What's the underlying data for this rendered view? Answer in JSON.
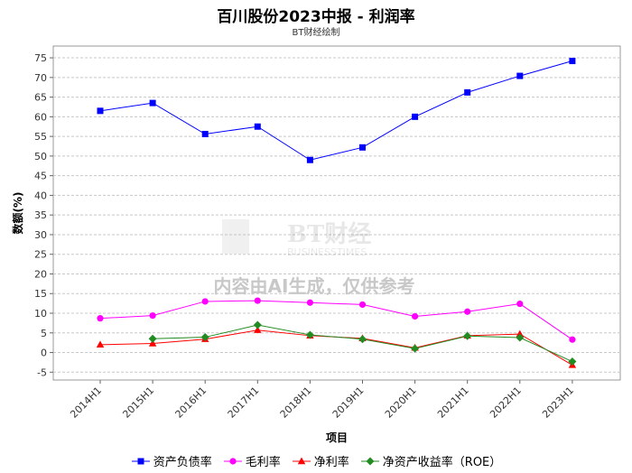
{
  "title": "百川股份2023中报 - 利润率",
  "subtitle": "BT财经绘制",
  "watermark": {
    "logo_text": "BT财经",
    "logo_sub": "BUSINESSTIMES",
    "notice": "内容由AI生成，仅供参考"
  },
  "chart_data": {
    "type": "line",
    "title": "百川股份2023中报 - 利润率",
    "subtitle": "BT财经绘制",
    "xlabel": "项目",
    "ylabel": "数额(%)",
    "ylim": [
      -7,
      78
    ],
    "yticks": [
      -5,
      0,
      5,
      10,
      15,
      20,
      25,
      30,
      35,
      40,
      45,
      50,
      55,
      60,
      65,
      70,
      75
    ],
    "grid": true,
    "legend_position": "bottom",
    "categories": [
      "2014H1",
      "2015H1",
      "2016H1",
      "2017H1",
      "2018H1",
      "2019H1",
      "2020H1",
      "2021H1",
      "2022H1",
      "2023H1"
    ],
    "series": [
      {
        "name": "资产负债率",
        "color": "#0000ff",
        "marker": "square",
        "values": [
          61.5,
          63.5,
          55.6,
          57.5,
          49.0,
          52.2,
          60.0,
          66.2,
          70.4,
          74.2
        ]
      },
      {
        "name": "毛利率",
        "color": "#ff00ff",
        "marker": "circle",
        "values": [
          8.7,
          9.4,
          13.0,
          13.2,
          12.7,
          12.2,
          9.2,
          10.4,
          12.4,
          3.3
        ]
      },
      {
        "name": "净利率",
        "color": "#ff0000",
        "marker": "triangle",
        "values": [
          2.0,
          2.3,
          3.4,
          5.7,
          4.3,
          3.6,
          1.2,
          4.3,
          4.7,
          -3.2
        ]
      },
      {
        "name": "净资产收益率（ROE）",
        "color": "#228b22",
        "marker": "diamond",
        "values": [
          null,
          3.5,
          3.9,
          7.0,
          4.5,
          3.4,
          1.0,
          4.2,
          3.8,
          -2.3
        ]
      }
    ]
  }
}
